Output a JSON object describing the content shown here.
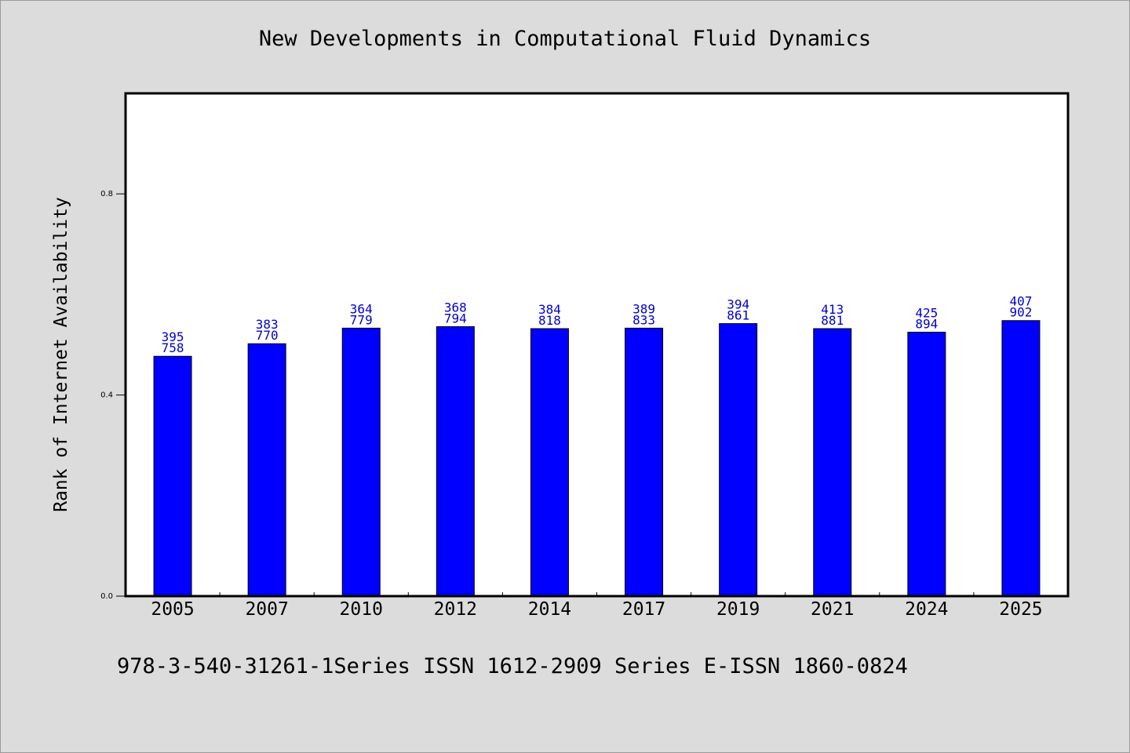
{
  "chart_data": {
    "type": "bar",
    "title": "New Developments in Computational Fluid Dynamics",
    "xlabel": "",
    "ylabel": "Rank of Internet Availability",
    "categories": [
      "2005",
      "2007",
      "2010",
      "2012",
      "2014",
      "2017",
      "2019",
      "2021",
      "2024",
      "2025"
    ],
    "values": [
      0.477,
      0.502,
      0.533,
      0.536,
      0.532,
      0.533,
      0.542,
      0.532,
      0.525,
      0.548
    ],
    "data_labels_top": [
      "395",
      "383",
      "364",
      "368",
      "384",
      "389",
      "394",
      "413",
      "425",
      "407"
    ],
    "data_labels_bottom": [
      "758",
      "770",
      "779",
      "794",
      "818",
      "833",
      "861",
      "881",
      "894",
      "902"
    ],
    "ylim": [
      0,
      1.0
    ],
    "yticks": [
      0.0,
      0.4,
      0.8
    ],
    "ytick_labels": [
      "0.0",
      "0.4",
      "0.8"
    ],
    "grid": false,
    "colors": {
      "bar": "#0000ff",
      "label": "#0000cc",
      "background": "#dcdcdc",
      "plot_background": "#ffffff"
    }
  },
  "footer": "978-3-540-31261-1Series ISSN 1612-2909 Series E-ISSN 1860-0824"
}
